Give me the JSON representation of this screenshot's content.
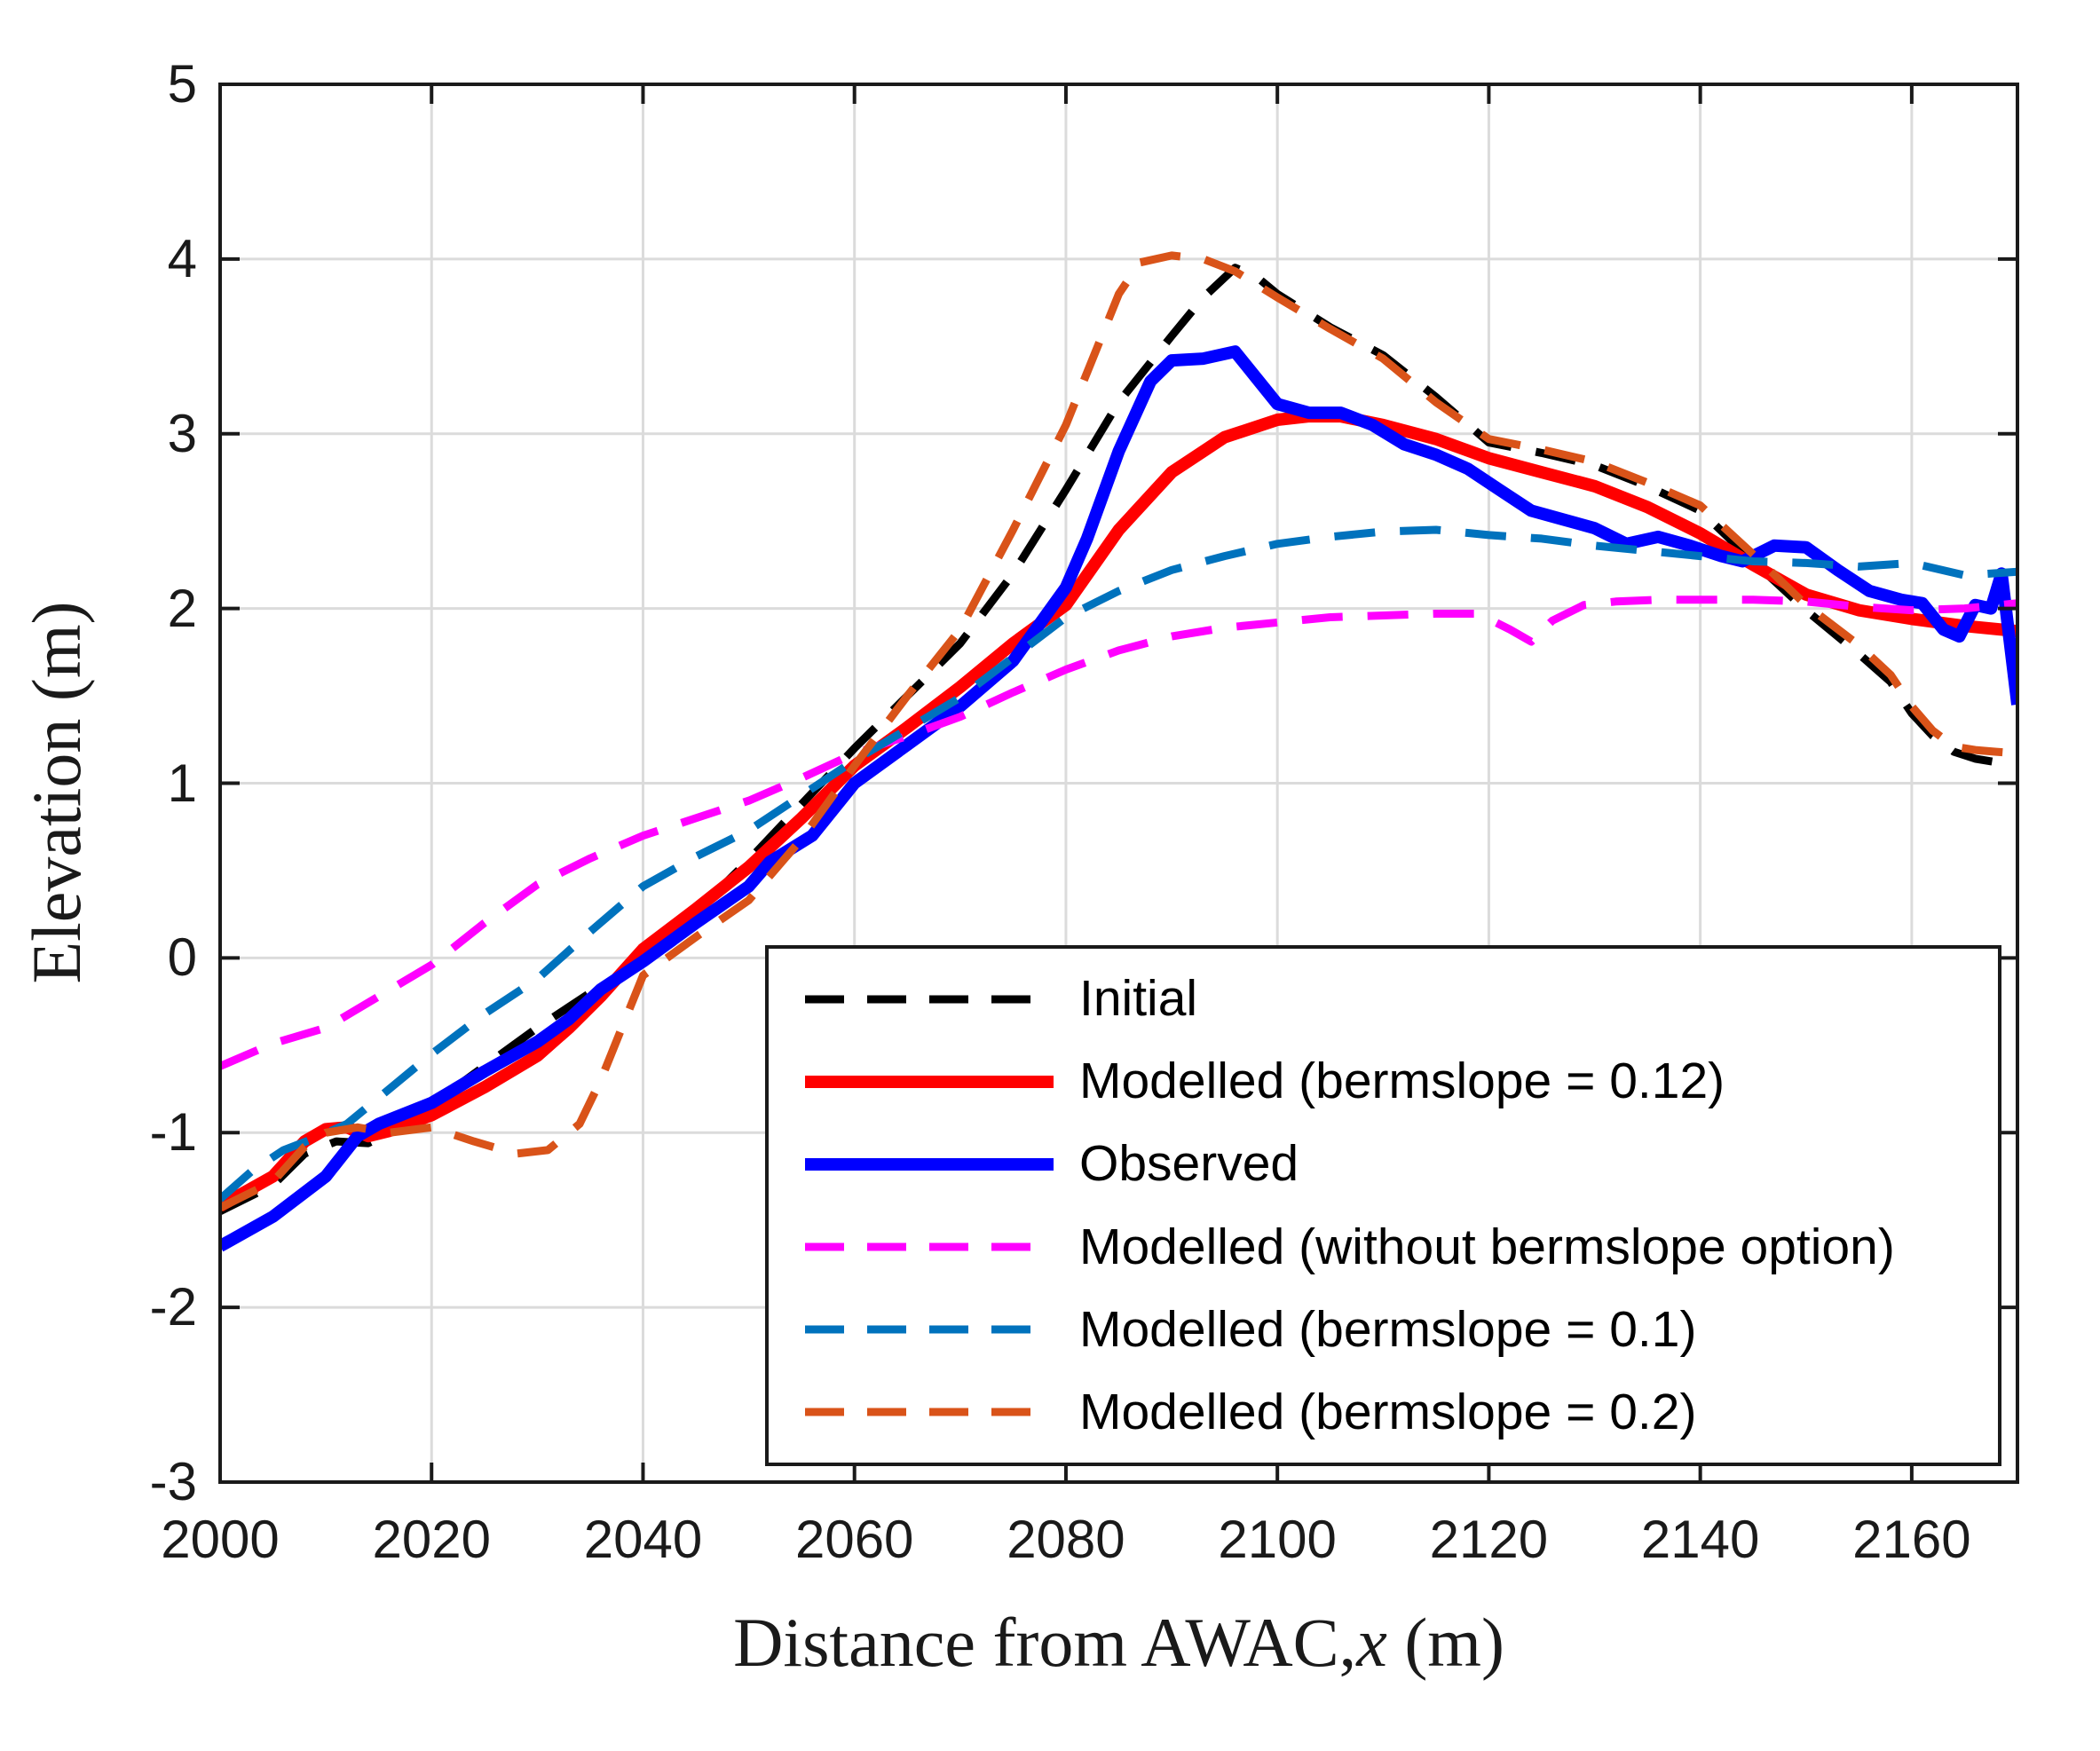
{
  "figure": {
    "background": "#ffffff",
    "axes_color": "#1a1a1a",
    "grid_color": "#dbdbdb",
    "tick_label_color": "#1a1a1a"
  },
  "axis": {
    "x": {
      "label_prefix": "Distance from AWAC,",
      "label_var": "x",
      "label_suffix": " (m)",
      "tick_labels": [
        "2000",
        "2020",
        "2040",
        "2060",
        "2080",
        "2100",
        "2120",
        "2140",
        "2160"
      ],
      "tick_values": [
        2000,
        2020,
        2040,
        2060,
        2080,
        2100,
        2120,
        2140,
        2160
      ]
    },
    "y": {
      "label": "Elevation (m)",
      "tick_labels": [
        "5",
        "4",
        "3",
        "2",
        "1",
        "0",
        "-1",
        "-2",
        "-3"
      ],
      "tick_values": [
        5,
        4,
        3,
        2,
        1,
        0,
        -1,
        -2,
        -3
      ]
    }
  },
  "chart_data": {
    "type": "line",
    "title": "",
    "xlabel": "Distance from AWAC, x (m)",
    "ylabel": "Elevation (m)",
    "xlim": [
      2000,
      2170
    ],
    "ylim": [
      -3,
      5
    ],
    "xticks": [
      2000,
      2020,
      2040,
      2060,
      2080,
      2100,
      2120,
      2140,
      2160
    ],
    "yticks": [
      -3,
      -2,
      -1,
      0,
      1,
      2,
      3,
      4,
      5
    ],
    "grid": true,
    "legend_position": "lower right inside",
    "series": [
      {
        "name": "Initial",
        "color": "#000000",
        "style": "dashed",
        "width": 9,
        "x": [
          2000,
          2005,
          2008,
          2011,
          2014,
          2017,
          2020,
          2025,
          2030,
          2035,
          2040,
          2045,
          2050,
          2055,
          2060,
          2065,
          2070,
          2075,
          2080,
          2085,
          2090,
          2093,
          2096,
          2098,
          2100,
          2105,
          2110,
          2115,
          2120,
          2125,
          2130,
          2135,
          2140,
          2145,
          2150,
          2155,
          2158,
          2160,
          2162,
          2164,
          2166,
          2168,
          2170
        ],
        "y": [
          -1.45,
          -1.3,
          -1.12,
          -1.05,
          -1.06,
          -0.97,
          -0.84,
          -0.62,
          -0.4,
          -0.2,
          -0.02,
          0.26,
          0.56,
          0.88,
          1.2,
          1.5,
          1.8,
          2.2,
          2.68,
          3.18,
          3.56,
          3.78,
          3.95,
          3.9,
          3.8,
          3.61,
          3.45,
          3.21,
          2.95,
          2.89,
          2.82,
          2.7,
          2.56,
          2.27,
          1.99,
          1.74,
          1.58,
          1.4,
          1.27,
          1.18,
          1.14,
          1.12,
          1.1
        ]
      },
      {
        "name": "Modelled (bermslope = 0.12)",
        "color": "#ff0000",
        "style": "solid",
        "width": 14,
        "x": [
          2000,
          2005,
          2008,
          2010,
          2012,
          2014,
          2016,
          2020,
          2025,
          2030,
          2033,
          2036,
          2040,
          2045,
          2050,
          2055,
          2060,
          2065,
          2070,
          2075,
          2080,
          2085,
          2090,
          2095,
          2100,
          2103,
          2106,
          2110,
          2115,
          2120,
          2125,
          2130,
          2135,
          2140,
          2145,
          2150,
          2155,
          2160,
          2165,
          2170
        ],
        "y": [
          -1.42,
          -1.25,
          -1.05,
          -0.98,
          -0.97,
          -1.02,
          -0.99,
          -0.9,
          -0.74,
          -0.56,
          -0.4,
          -0.22,
          0.05,
          0.28,
          0.52,
          0.8,
          1.1,
          1.32,
          1.55,
          1.8,
          2.02,
          2.45,
          2.78,
          2.98,
          3.08,
          3.1,
          3.1,
          3.05,
          2.97,
          2.86,
          2.78,
          2.7,
          2.58,
          2.43,
          2.25,
          2.08,
          1.99,
          1.94,
          1.9,
          1.87
        ]
      },
      {
        "name": "Observed",
        "color": "#0000ff",
        "style": "solid",
        "width": 14,
        "x": [
          2000,
          2005,
          2010,
          2013,
          2015,
          2020,
          2025,
          2030,
          2033,
          2036,
          2040,
          2045,
          2050,
          2052,
          2056,
          2060,
          2065,
          2070,
          2075,
          2080,
          2082,
          2085,
          2088,
          2090,
          2093,
          2096,
          2098,
          2100,
          2103,
          2106,
          2109,
          2112,
          2115,
          2118,
          2121,
          2124,
          2127,
          2130,
          2133,
          2136,
          2139,
          2142,
          2144,
          2147,
          2150,
          2153,
          2156,
          2159,
          2161,
          2163,
          2164.5,
          2166,
          2167.5,
          2168.5,
          2170
        ],
        "y": [
          -1.65,
          -1.48,
          -1.25,
          -1.02,
          -0.95,
          -0.83,
          -0.65,
          -0.48,
          -0.35,
          -0.18,
          -0.02,
          0.2,
          0.41,
          0.55,
          0.7,
          1.0,
          1.22,
          1.44,
          1.7,
          2.12,
          2.4,
          2.9,
          3.3,
          3.42,
          3.43,
          3.47,
          3.32,
          3.17,
          3.12,
          3.12,
          3.05,
          2.94,
          2.88,
          2.8,
          2.68,
          2.56,
          2.51,
          2.46,
          2.37,
          2.41,
          2.36,
          2.3,
          2.27,
          2.36,
          2.35,
          2.22,
          2.1,
          2.05,
          2.03,
          1.88,
          1.84,
          2.02,
          2.0,
          2.2,
          1.45
        ]
      },
      {
        "name": "Modelled (without bermslope option)",
        "color": "#ff00ff",
        "style": "dashed",
        "width": 9,
        "x": [
          2000,
          2005,
          2010,
          2015,
          2020,
          2025,
          2030,
          2035,
          2040,
          2045,
          2050,
          2055,
          2060,
          2065,
          2070,
          2075,
          2080,
          2085,
          2090,
          2095,
          2100,
          2105,
          2110,
          2115,
          2119,
          2122,
          2124,
          2126,
          2129,
          2132,
          2136,
          2140,
          2145,
          2150,
          2155,
          2160,
          2165,
          2170
        ],
        "y": [
          -0.62,
          -0.49,
          -0.4,
          -0.22,
          -0.04,
          0.2,
          0.42,
          0.57,
          0.7,
          0.8,
          0.9,
          1.03,
          1.17,
          1.27,
          1.38,
          1.52,
          1.65,
          1.76,
          1.84,
          1.89,
          1.92,
          1.95,
          1.96,
          1.97,
          1.97,
          1.88,
          1.81,
          1.93,
          2.02,
          2.04,
          2.05,
          2.05,
          2.05,
          2.04,
          2.01,
          1.99,
          2.0,
          2.03
        ]
      },
      {
        "name": "Modelled (bermslope = 0.1)",
        "color": "#0072bd",
        "style": "dashed",
        "width": 9,
        "x": [
          2000,
          2003,
          2006,
          2009,
          2012,
          2015,
          2020,
          2025,
          2030,
          2035,
          2040,
          2045,
          2050,
          2055,
          2060,
          2065,
          2070,
          2075,
          2080,
          2085,
          2090,
          2095,
          2100,
          2105,
          2110,
          2115,
          2120,
          2125,
          2130,
          2135,
          2140,
          2145,
          2150,
          2155,
          2160,
          2165,
          2170
        ],
        "y": [
          -1.38,
          -1.22,
          -1.1,
          -1.03,
          -0.95,
          -0.8,
          -0.55,
          -0.32,
          -0.12,
          0.15,
          0.41,
          0.58,
          0.73,
          0.93,
          1.13,
          1.31,
          1.49,
          1.72,
          1.95,
          2.1,
          2.22,
          2.3,
          2.37,
          2.41,
          2.44,
          2.45,
          2.42,
          2.4,
          2.36,
          2.33,
          2.3,
          2.27,
          2.26,
          2.24,
          2.26,
          2.19,
          2.21
        ]
      },
      {
        "name": "Modelled (bermslope = 0.2)",
        "color": "#d95319",
        "style": "dashed",
        "width": 9,
        "x": [
          2000,
          2005,
          2008,
          2010,
          2013,
          2016,
          2020,
          2024,
          2028,
          2031,
          2034,
          2036,
          2038,
          2040,
          2045,
          2050,
          2055,
          2060,
          2065,
          2070,
          2075,
          2080,
          2083,
          2085,
          2087,
          2090,
          2093,
          2096,
          2100,
          2105,
          2110,
          2115,
          2120,
          2125,
          2130,
          2135,
          2140,
          2145,
          2150,
          2155,
          2158,
          2160,
          2162,
          2164,
          2166,
          2168,
          2170
        ],
        "y": [
          -1.43,
          -1.28,
          -1.08,
          -1.0,
          -0.97,
          -1.0,
          -0.97,
          -1.05,
          -1.12,
          -1.1,
          -0.95,
          -0.7,
          -0.4,
          -0.1,
          0.12,
          0.33,
          0.68,
          1.1,
          1.5,
          1.88,
          2.45,
          3.05,
          3.5,
          3.8,
          3.98,
          4.02,
          4.0,
          3.93,
          3.78,
          3.6,
          3.43,
          3.18,
          2.97,
          2.91,
          2.84,
          2.72,
          2.59,
          2.31,
          2.02,
          1.79,
          1.62,
          1.44,
          1.3,
          1.21,
          1.19,
          1.18,
          1.17
        ]
      }
    ]
  }
}
